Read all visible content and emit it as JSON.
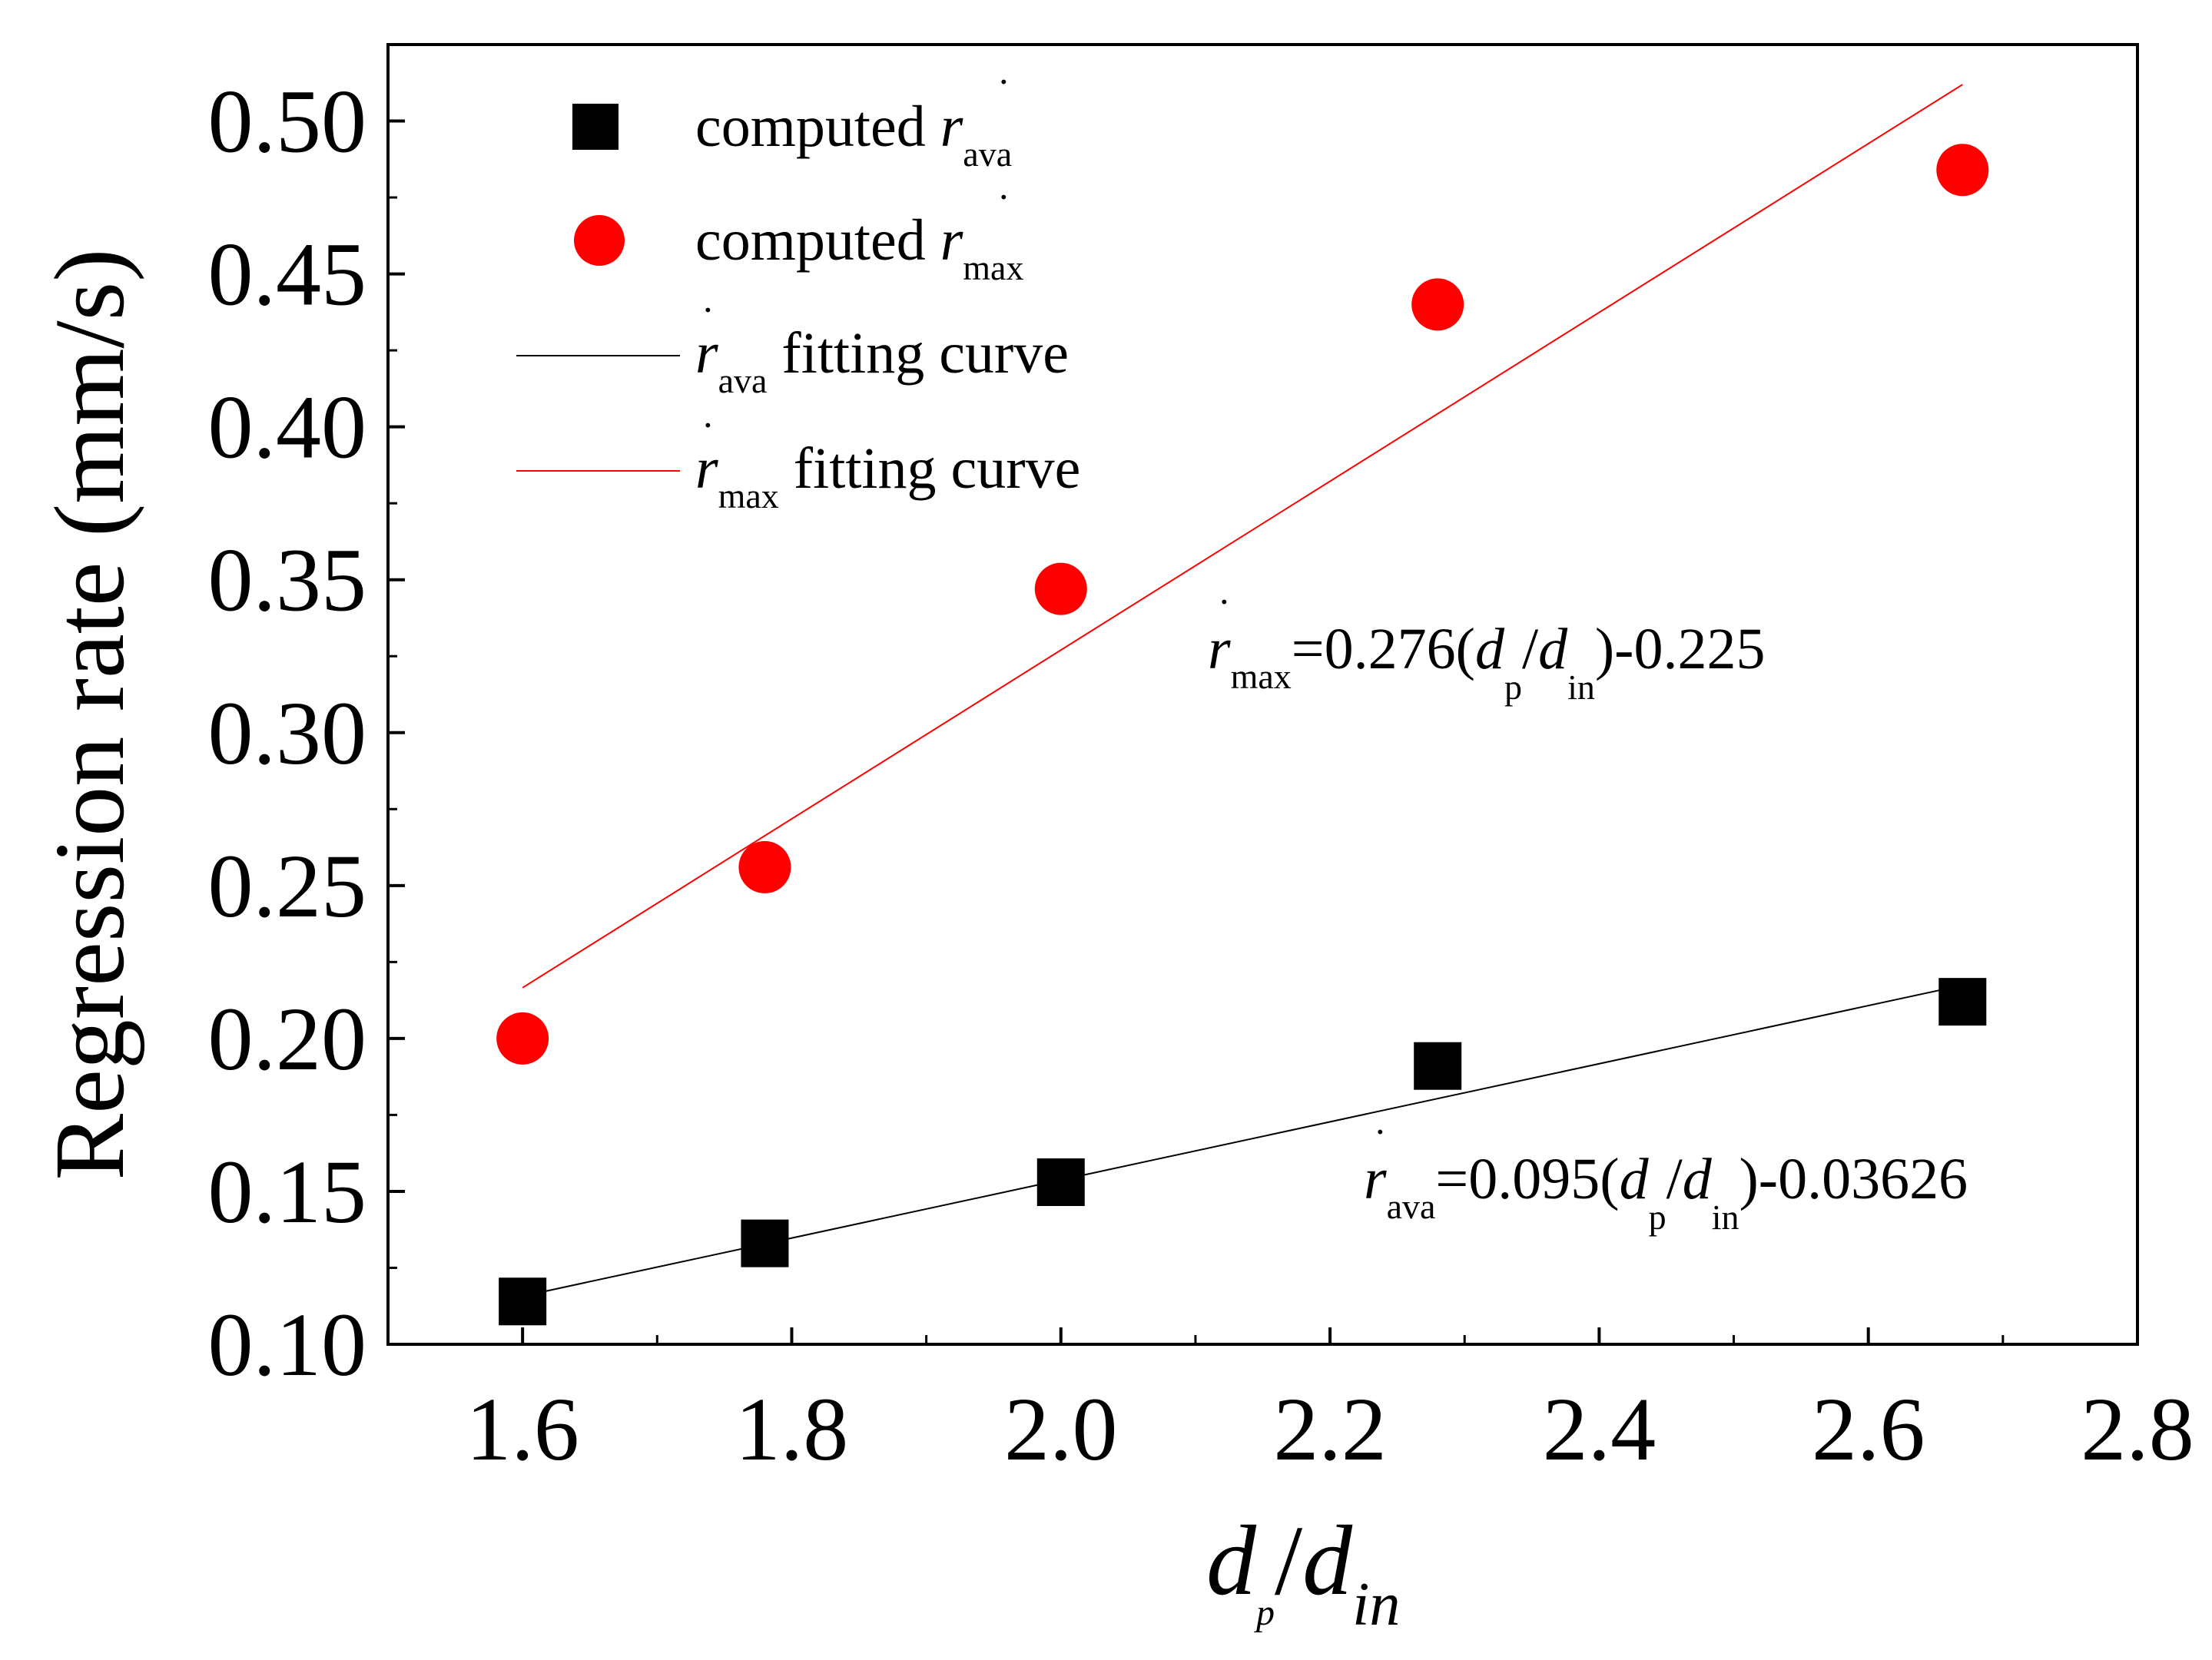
{
  "chart_data": {
    "type": "scatter",
    "xlabel": {
      "main": "d",
      "sub1": "p",
      "sep": "/",
      "main2": "d",
      "sub2": "in"
    },
    "ylabel": "Regression rate (mm/s)",
    "xlim": [
      1.5,
      2.8
    ],
    "ylim": [
      0.1,
      0.525
    ],
    "x_ticks": [
      "1.6",
      "1.8",
      "2.0",
      "2.2",
      "2.4",
      "2.6",
      "2.8"
    ],
    "y_ticks": [
      "0.10",
      "0.15",
      "0.20",
      "0.25",
      "0.30",
      "0.35",
      "0.40",
      "0.45",
      "0.50"
    ],
    "series": [
      {
        "name": "computed r_ava",
        "marker": "square",
        "color": "#000000",
        "x": [
          1.6,
          1.78,
          2.0,
          2.28,
          2.67
        ],
        "y": [
          0.114,
          0.133,
          0.153,
          0.191,
          0.212
        ]
      },
      {
        "name": "computed r_max",
        "marker": "circle",
        "color": "#ff0000",
        "x": [
          1.6,
          1.78,
          2.0,
          2.28,
          2.67
        ],
        "y": [
          0.2,
          0.256,
          0.347,
          0.44,
          0.484
        ]
      }
    ],
    "fits": [
      {
        "name": "r_ava fitting curve",
        "color": "#000000",
        "slope": 0.095,
        "intercept": -0.03626,
        "x_range": [
          1.6,
          2.67
        ]
      },
      {
        "name": "r_max fitting curve",
        "color": "#ff0000",
        "slope": 0.276,
        "intercept": -0.225,
        "x_range": [
          1.6,
          2.67
        ]
      }
    ],
    "legend": {
      "position": "top-left",
      "entries": [
        {
          "text": "computed ",
          "sym": "r",
          "sub": "ava",
          "after": ""
        },
        {
          "text": "computed ",
          "sym": "r",
          "sub": "max",
          "after": ""
        },
        {
          "text": "",
          "sym": "r",
          "sub": "ava",
          "after": " fitting curve"
        },
        {
          "text": "",
          "sym": "r",
          "sub": "max",
          "after": " fitting curve"
        }
      ]
    },
    "annotations": [
      {
        "sym": "r",
        "sub": "max",
        "a": "=0.276(",
        "d1": "d",
        "s1": "p",
        "slash": "/",
        "d2": "d",
        "s2": "in",
        "b": ")-0.225"
      },
      {
        "sym": "r",
        "sub": "ava",
        "a": "=0.095(",
        "d1": "d",
        "s1": "p",
        "slash": "/",
        "d2": "d",
        "s2": "in",
        "b": ")-0.03626"
      }
    ]
  }
}
